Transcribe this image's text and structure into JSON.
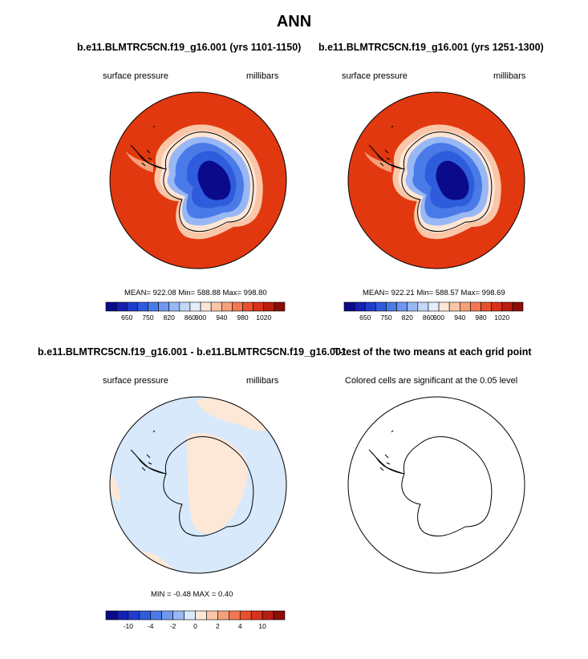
{
  "figure": {
    "title": "ANN",
    "panel_title_left": "b.e11.BLMTRC5CN.f19_g16.001 (yrs 1101-1150)",
    "panel_title_right": "b.e11.BLMTRC5CN.f19_g16.001 (yrs 1251-1300)",
    "diff_title": "b.e11.BLMTRC5CN.f19_g16.001 - b.e11.BLMTRC5CN.f19_g16.001",
    "ttest_title": "T-test of the two means at each grid point"
  },
  "panels": {
    "p1": {
      "variable": "surface pressure",
      "units": "millibars",
      "stats": "MEAN= 922.08  Min= 588.88  Max= 998.80"
    },
    "p2": {
      "variable": "surface pressure",
      "units": "millibars",
      "stats": "MEAN= 922.21  Min= 588.57  Max= 998.69"
    },
    "p3": {
      "variable": "surface pressure",
      "units": "millibars",
      "stats": "MIN =  -0.48 MAX =   0.40"
    },
    "p4": {
      "note": "Colored cells are significant at the 0.05 level"
    }
  },
  "colorbar_abs": {
    "labels": [
      "650",
      "750",
      "820",
      "860",
      "900",
      "940",
      "980",
      "1020"
    ],
    "colors": [
      "#0a0a8a",
      "#1420b4",
      "#1f3ccc",
      "#2e5cdc",
      "#4a7ae8",
      "#6e98f0",
      "#98b8f5",
      "#c4d8f8",
      "#e6eefc",
      "#fde6d6",
      "#f9c6a8",
      "#f6a07a",
      "#f27752",
      "#eb502e",
      "#d8321a",
      "#b81e10",
      "#8c0c06"
    ]
  },
  "colorbar_diff": {
    "labels": [
      "-10",
      "-4",
      "-2",
      "0",
      "2",
      "4",
      "10"
    ],
    "colors": [
      "#0a0a8a",
      "#1420b4",
      "#1f3ccc",
      "#2e5cdc",
      "#4a7ae8",
      "#6e98f0",
      "#98b8f5",
      "#d8e8fb",
      "#fde6d6",
      "#f9c6a8",
      "#f6a07a",
      "#f27752",
      "#eb502e",
      "#d8321a",
      "#b81e10",
      "#8c0c06"
    ]
  },
  "map_colors": {
    "ocean_high": "#e2380f",
    "diff_neg": "#d7e9fb",
    "diff_pos": "#fde8d8"
  }
}
